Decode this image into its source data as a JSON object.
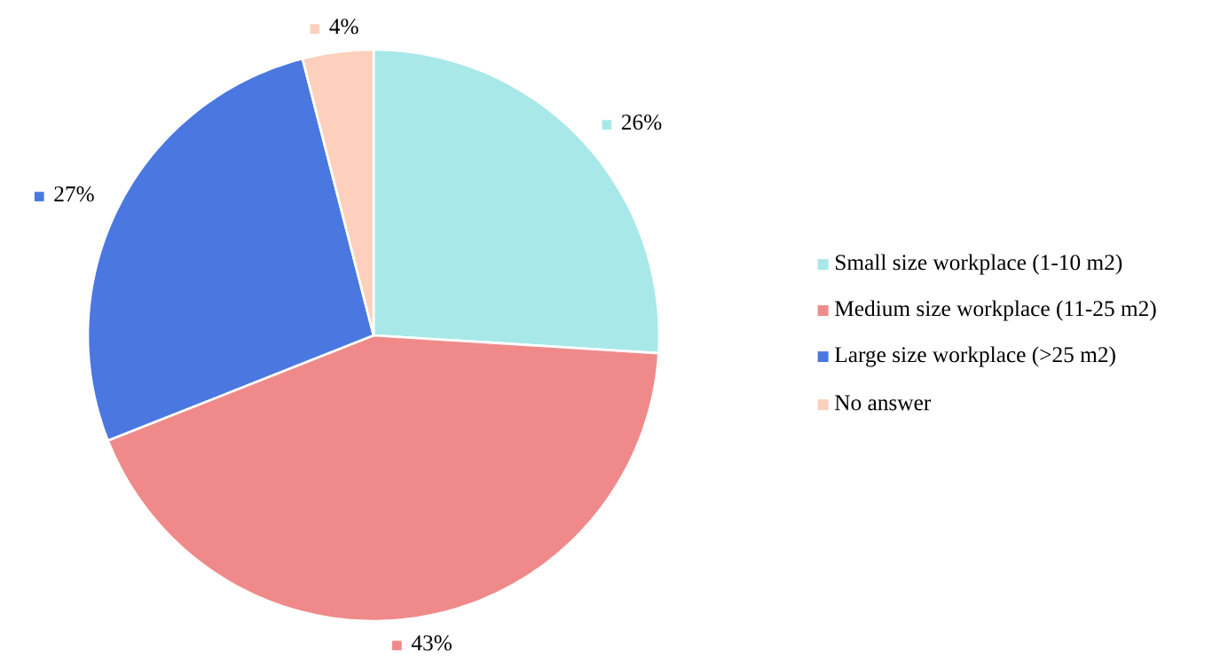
{
  "chart_data": {
    "type": "pie",
    "categories": [
      "Small size workplace (1-10 m2)",
      "Medium size workplace (11-25 m2)",
      "Large size workplace (>25 m2)",
      "No answer"
    ],
    "values": [
      26,
      43,
      27,
      4
    ],
    "value_labels": [
      "26%",
      "43%",
      "27%",
      "4%"
    ],
    "colors": [
      "#a8e8e8",
      "#f08a8a",
      "#4a78e0",
      "#fcd0bc"
    ],
    "legend": "right"
  }
}
